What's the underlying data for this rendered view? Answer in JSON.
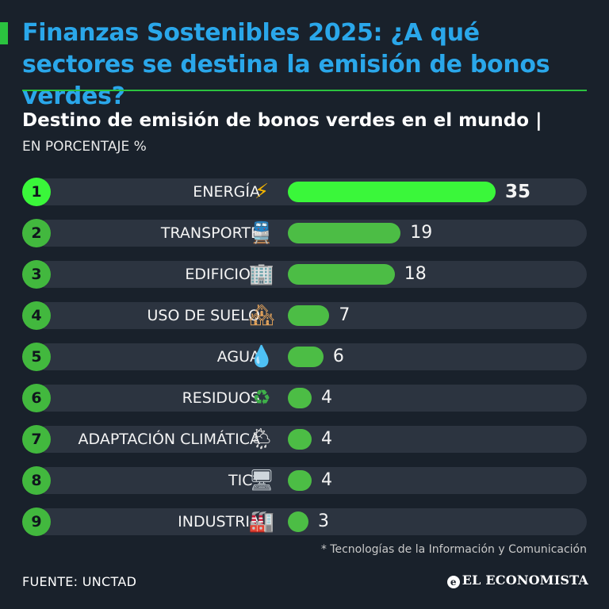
{
  "header": {
    "title": "Finanzas Sostenibles 2025: ¿A qué sectores se destina la emisión de bonos verdes?",
    "accent_color": "#2bc33f",
    "title_color": "#2aa7ea"
  },
  "chart_data": {
    "type": "bar",
    "orientation": "horizontal",
    "title": "Destino de emisión de bonos verdes en el mundo |",
    "ylabel": "EN PORCENTAJE %",
    "xlim": [
      0,
      35
    ],
    "categories": [
      "ENERGÍA",
      "TRANSPORTE",
      "EDIFICIOS",
      "USO DE SUELO",
      "AGUA",
      "RESIDUOS",
      "ADAPTACIÓN CLIMÁTICA",
      "TIC*",
      "INDUSTRIA"
    ],
    "ranks": [
      "1",
      "2",
      "3",
      "4",
      "5",
      "6",
      "7",
      "8",
      "9"
    ],
    "values": [
      35,
      19,
      18,
      7,
      6,
      4,
      4,
      4,
      3
    ],
    "icons": [
      "lightning-icon",
      "train-icon",
      "building-icon",
      "houses-icon",
      "water-drop-icon",
      "recycle-icon",
      "rain-cloud-icon",
      "monitor-icon",
      "factory-icon"
    ],
    "bar_color": "#4cbd45",
    "highlight_color": "#3af73a"
  },
  "footnote": "* Tecnologías de la Información y Comunicación",
  "source": "FUENTE: UNCTAD",
  "brand": "EL ECONOMISTA"
}
